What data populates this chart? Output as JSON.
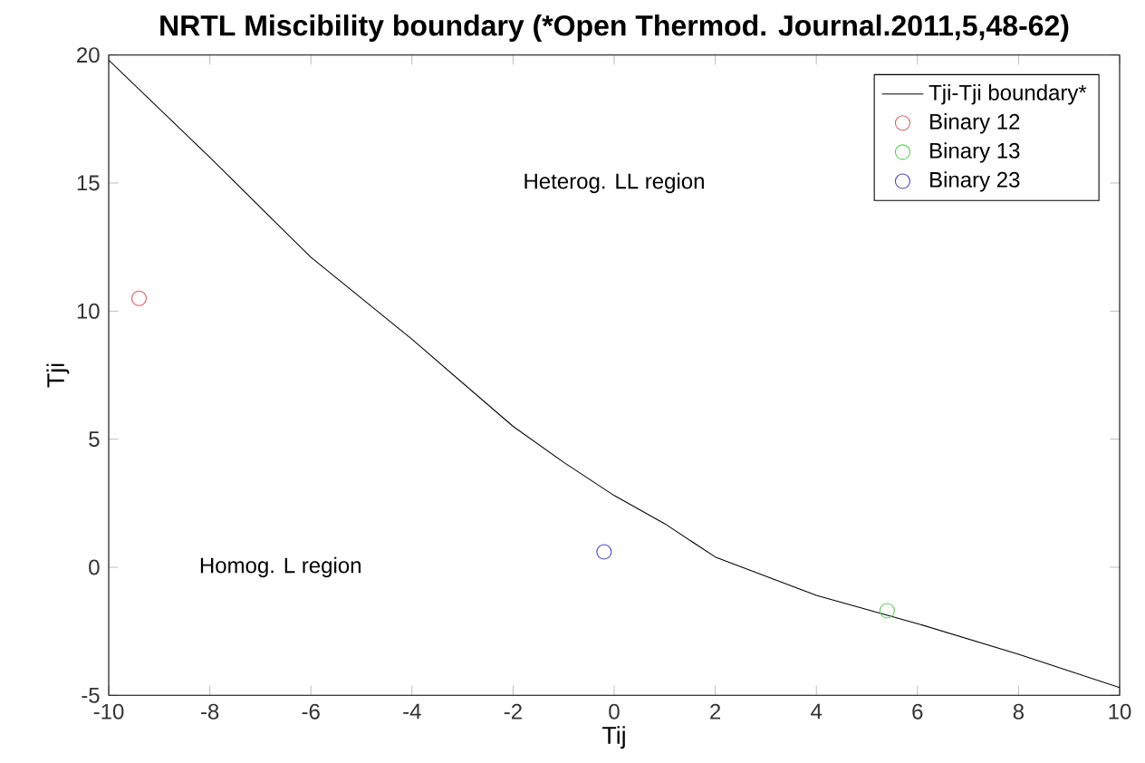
{
  "chart_data": {
    "type": "line",
    "title": "NRTL Miscibility boundary (*Open Thermod. Journal.2011,5,48-62)",
    "xlabel": "Tij",
    "ylabel": "Tji",
    "xlim": [
      -10,
      10
    ],
    "ylim": [
      -5,
      20
    ],
    "xticks": [
      -10,
      -8,
      -6,
      -4,
      -2,
      0,
      2,
      4,
      6,
      8,
      10
    ],
    "yticks": [
      -5,
      0,
      5,
      10,
      15,
      20
    ],
    "grid": false,
    "legend": "top right",
    "annotations": [
      "Heterog. LL region",
      "Homog. L region"
    ],
    "series": [
      {
        "name": "Tji-Tji boundary*",
        "color": "#000000",
        "marker": "none",
        "x": [
          -10,
          -8,
          -6,
          -5,
          -4,
          -3,
          -2,
          -1,
          0,
          1,
          2,
          4,
          6,
          8,
          10
        ],
        "values": [
          19.8,
          16.0,
          12.1,
          10.5,
          8.9,
          7.2,
          5.5,
          4.1,
          2.8,
          1.7,
          0.4,
          -1.1,
          -2.2,
          -3.4,
          -4.7
        ]
      },
      {
        "name": "Binary 12",
        "type": "scatter",
        "color": "#e06060",
        "marker": "circle",
        "x": [
          -9.4
        ],
        "values": [
          10.5
        ]
      },
      {
        "name": "Binary 13",
        "type": "scatter",
        "color": "#55d055",
        "marker": "circle",
        "x": [
          5.4
        ],
        "values": [
          -1.7
        ]
      },
      {
        "name": "Binary 23",
        "type": "scatter",
        "color": "#4040c0",
        "marker": "circle",
        "x": [
          -0.2
        ],
        "values": [
          0.6
        ]
      }
    ]
  }
}
